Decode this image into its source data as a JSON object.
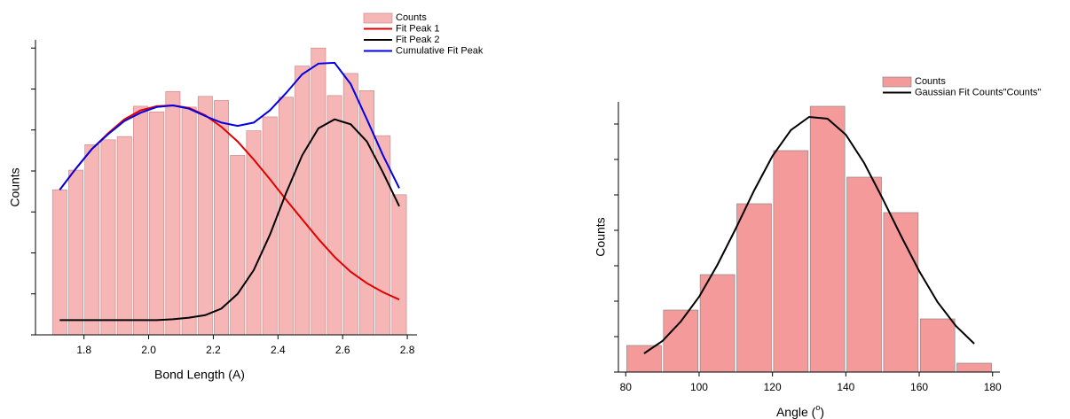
{
  "chart_data": [
    {
      "type": "histogram",
      "xlabel": "Bond Length (A)",
      "ylabel": "Counts",
      "xlim": [
        1.65,
        2.83
      ],
      "ylim": [
        0,
        36
      ],
      "xticks": [
        1.8,
        {
          "value": 2,
          "label": "2.0"
        },
        2.2,
        2.4,
        2.6,
        2.8
      ],
      "yticks": [
        0,
        5,
        10,
        15,
        20,
        25,
        30,
        35
      ],
      "series": [
        {
          "name": "Counts",
          "type": "histogram",
          "color": "#f7b6b6",
          "bins": [
            1.7,
            1.75,
            1.8,
            1.85,
            1.9,
            1.95,
            2.0,
            2.05,
            2.1,
            2.15,
            2.2,
            2.25,
            2.3,
            2.35,
            2.4,
            2.45,
            2.5,
            2.55,
            2.6,
            2.65,
            2.7,
            2.75,
            2.8
          ],
          "values": [
            17.7,
            20.1,
            23.2,
            23.8,
            24.2,
            27.9,
            27.2,
            29.7,
            27.8,
            29.1,
            28.6,
            21.9,
            24.9,
            26.6,
            29.0,
            32.8,
            35.0,
            29.2,
            31.9,
            29.8,
            24.3,
            17.1
          ]
        },
        {
          "name": "Fit Peak 1",
          "type": "line",
          "color": "#e00000",
          "x": [
            1.725,
            1.775,
            1.825,
            1.875,
            1.925,
            1.975,
            2.025,
            2.075,
            2.125,
            2.175,
            2.225,
            2.275,
            2.325,
            2.375,
            2.425,
            2.475,
            2.525,
            2.575,
            2.625,
            2.675,
            2.725,
            2.775
          ],
          "values": [
            17.7,
            20.3,
            22.7,
            24.6,
            26.3,
            27.4,
            27.9,
            28.0,
            27.7,
            26.8,
            25.4,
            23.6,
            21.4,
            19.0,
            16.5,
            14.1,
            11.7,
            9.5,
            7.7,
            6.3,
            5.2,
            4.3
          ]
        },
        {
          "name": "Fit Peak 2",
          "type": "line",
          "color": "#000000",
          "x": [
            1.725,
            1.775,
            1.825,
            1.875,
            1.925,
            1.975,
            2.025,
            2.075,
            2.125,
            2.175,
            2.225,
            2.275,
            2.325,
            2.375,
            2.425,
            2.475,
            2.525,
            2.575,
            2.625,
            2.675,
            2.725,
            2.775
          ],
          "values": [
            1.8,
            1.8,
            1.8,
            1.8,
            1.8,
            1.8,
            1.8,
            1.9,
            2.1,
            2.4,
            3.2,
            5.0,
            7.9,
            12.2,
            17.3,
            21.9,
            25.2,
            26.3,
            25.7,
            23.6,
            19.8,
            15.7
          ]
        },
        {
          "name": "Cumulative Fit Peak",
          "type": "line",
          "color": "#0000e6",
          "x": [
            1.725,
            1.775,
            1.825,
            1.875,
            1.925,
            1.975,
            2.025,
            2.075,
            2.125,
            2.175,
            2.225,
            2.275,
            2.325,
            2.375,
            2.425,
            2.475,
            2.525,
            2.575,
            2.625,
            2.675,
            2.725,
            2.775
          ],
          "values": [
            17.7,
            20.3,
            22.7,
            24.5,
            26.1,
            27.1,
            27.8,
            28.0,
            27.6,
            26.7,
            25.9,
            25.5,
            25.9,
            27.4,
            29.5,
            31.8,
            33.1,
            33.2,
            30.6,
            26.3,
            21.9,
            17.9
          ]
        }
      ]
    },
    {
      "type": "histogram",
      "xlabel_parts": [
        "Angle (",
        "o",
        ")"
      ],
      "ylabel": "Counts",
      "xlim": [
        78,
        182
      ],
      "ylim": [
        0,
        30.5
      ],
      "xticks": [
        80,
        100,
        120,
        140,
        160,
        180
      ],
      "yticks": [
        0,
        4,
        8,
        12,
        16,
        20,
        24,
        28
      ],
      "series": [
        {
          "name": "Counts",
          "type": "histogram",
          "color": "#f59a9a",
          "bins": [
            80,
            90,
            100,
            110,
            120,
            130,
            140,
            150,
            160,
            170,
            180
          ],
          "values": [
            3,
            7,
            11,
            19,
            25,
            30,
            22,
            18,
            6,
            1
          ]
        },
        {
          "name": "Gaussian Fit Counts\"Counts\"",
          "type": "line",
          "color": "#000000",
          "x": [
            85,
            90,
            95,
            100,
            105,
            110,
            115,
            120,
            125,
            130,
            135,
            140,
            145,
            150,
            155,
            160,
            165,
            170,
            175
          ],
          "values": [
            2.1,
            3.5,
            5.7,
            8.5,
            12.1,
            16.2,
            20.5,
            24.4,
            27.3,
            28.8,
            28.6,
            26.8,
            23.6,
            19.6,
            15.4,
            11.4,
            7.9,
            5.2,
            3.2
          ]
        }
      ]
    }
  ]
}
